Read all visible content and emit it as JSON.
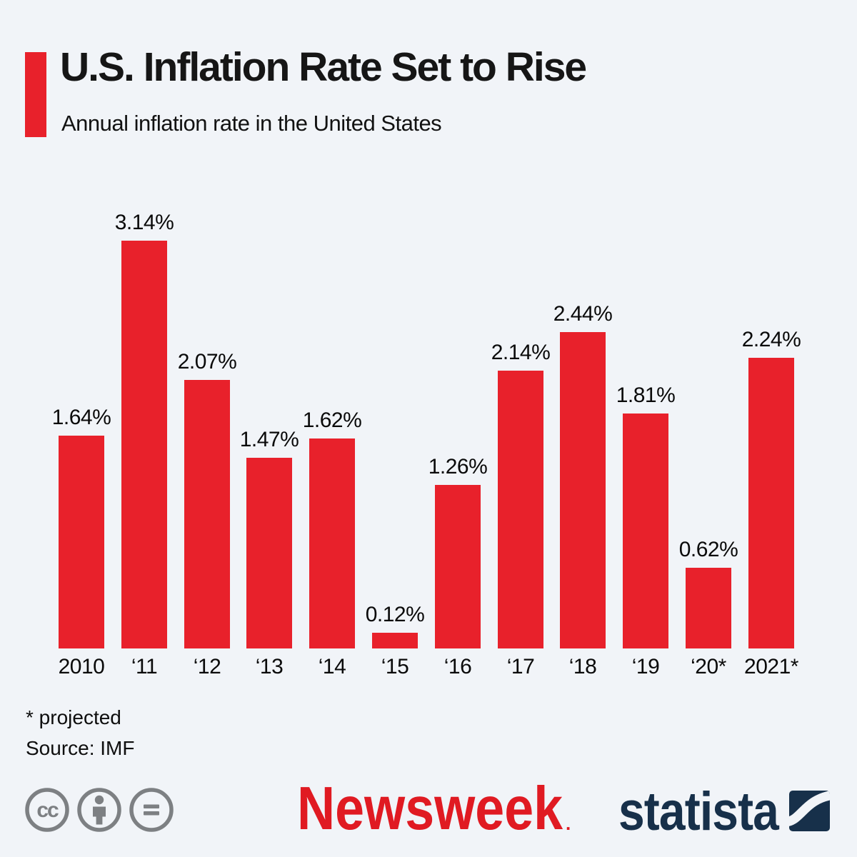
{
  "header": {
    "title": "U.S. Inflation Rate Set to Rise",
    "subtitle": "Annual inflation rate in the United States",
    "accent_color": "#e8212b"
  },
  "chart_data": {
    "type": "bar",
    "title": "U.S. Inflation Rate Set to Rise",
    "subtitle": "Annual inflation rate in the United States",
    "categories": [
      "2010",
      "‘11",
      "‘12",
      "‘13",
      "‘14",
      "‘15",
      "‘16",
      "‘17",
      "‘18",
      "‘19",
      "‘20*",
      "2021*"
    ],
    "values": [
      1.64,
      3.14,
      2.07,
      1.47,
      1.62,
      0.12,
      1.26,
      2.14,
      2.44,
      1.81,
      0.62,
      2.24
    ],
    "value_labels": [
      "1.64%",
      "3.14%",
      "2.07%",
      "1.47%",
      "1.62%",
      "0.12%",
      "1.26%",
      "2.14%",
      "2.44%",
      "1.81%",
      "0.62%",
      "2.24%"
    ],
    "xlabel": "",
    "ylabel": "",
    "ylim": [
      0,
      3.3
    ],
    "bar_color": "#e8212b",
    "grid": false,
    "legend": "none",
    "value_labels_position": "above-bars"
  },
  "footnotes": {
    "projected": "* projected",
    "source": "Source: IMF"
  },
  "footer": {
    "license_icons": [
      "cc-icon",
      "cc-by-icon",
      "cc-nd-icon"
    ],
    "cc_letters": "cc",
    "newsweek_text": "Newsweek",
    "newsweek_mark": ".",
    "statista_text": "statista",
    "newsweek_color": "#e01a22",
    "statista_color": "#17304a",
    "cc_gray": "#7d8083"
  },
  "colors": {
    "background": "#f1f4f8",
    "bar_red": "#e8212b",
    "text_dark": "#111111"
  }
}
